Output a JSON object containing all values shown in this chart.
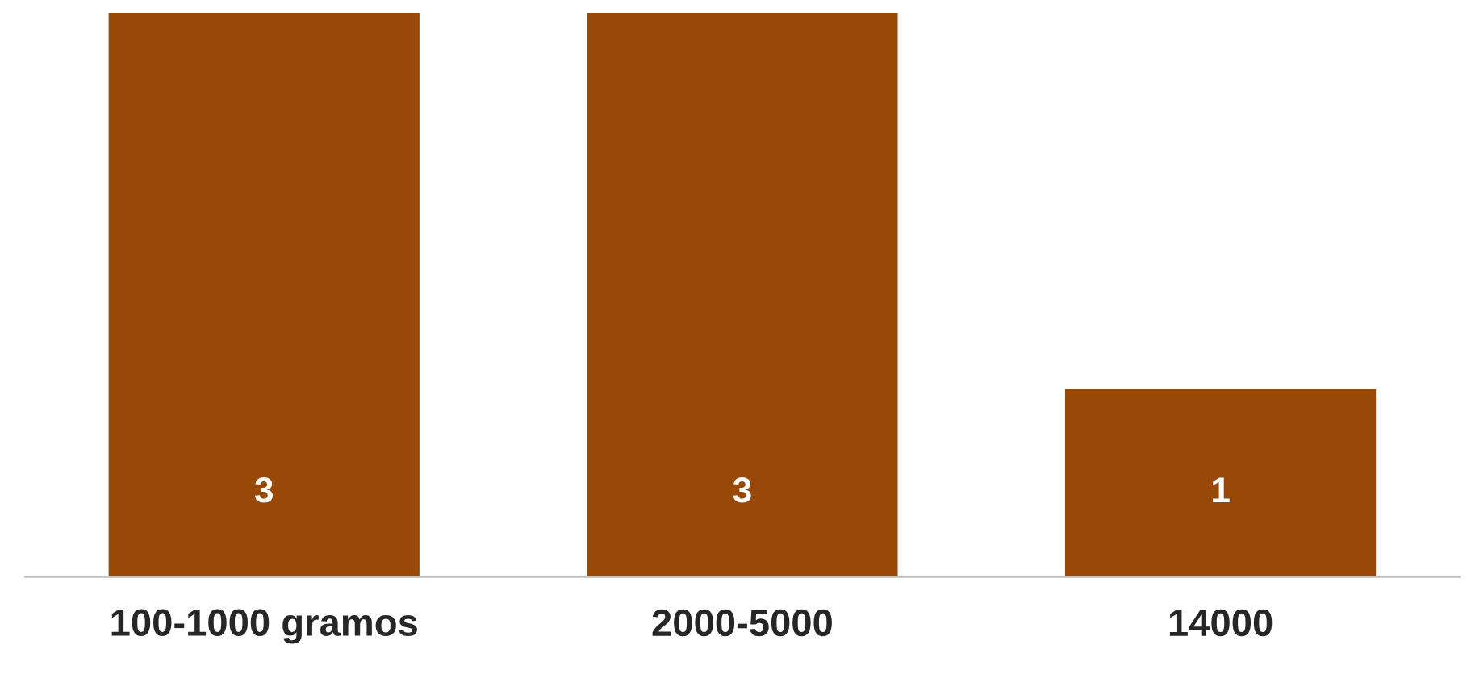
{
  "chart_data": {
    "type": "bar",
    "categories": [
      "100-1000 gramos",
      "2000-5000",
      "14000"
    ],
    "values": [
      3,
      3,
      1
    ],
    "color": "#984807",
    "ylim": [
      0,
      3
    ],
    "data_labels": true,
    "grid": false,
    "legend": false
  }
}
